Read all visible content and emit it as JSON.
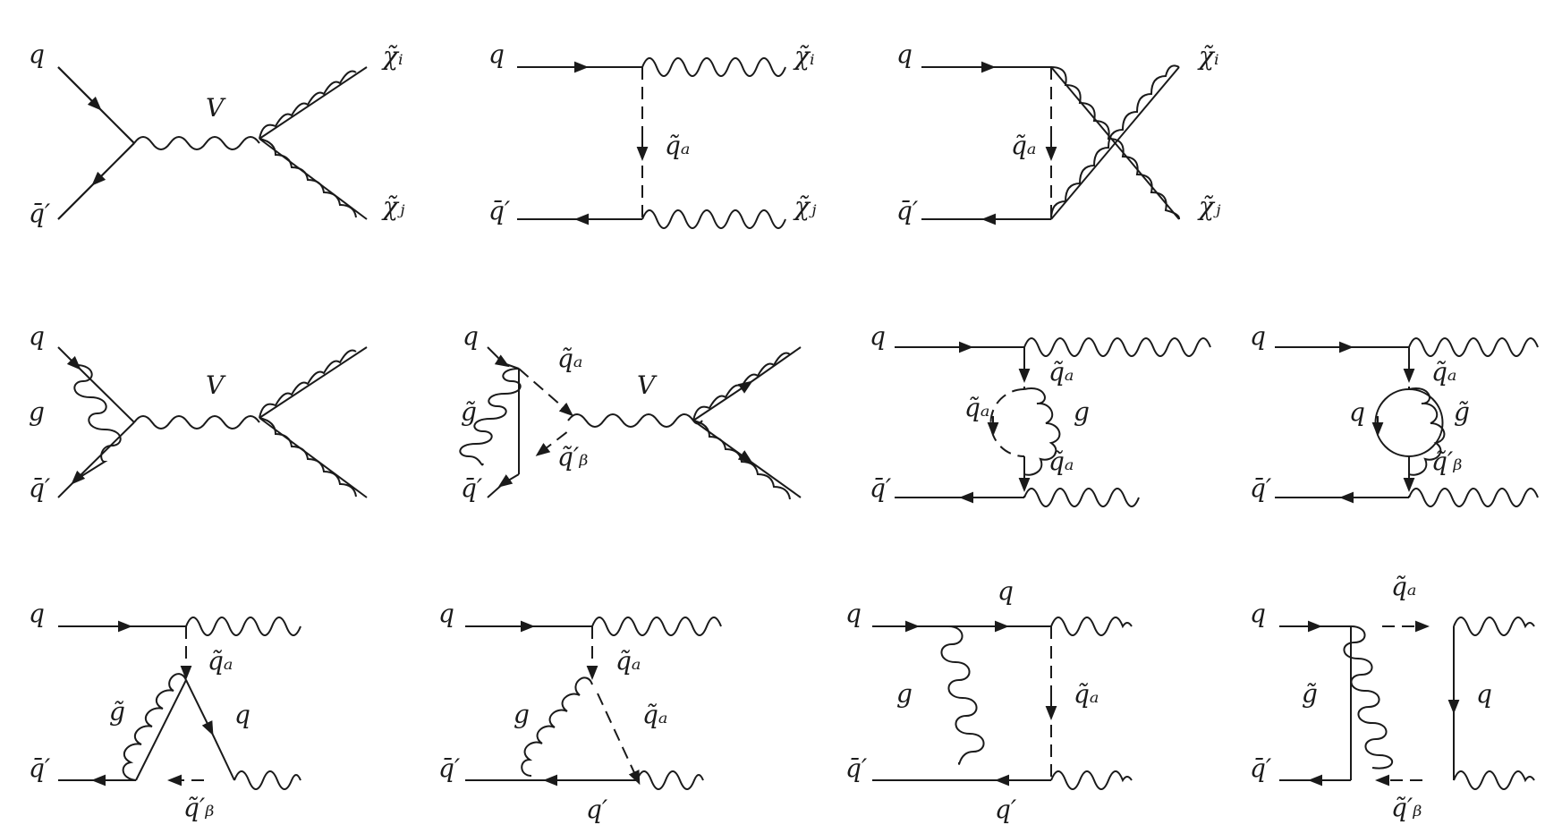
{
  "labels": {
    "q": "q",
    "qbar_prime": "q̄′",
    "q_prime": "q′",
    "g": "g",
    "V": "V",
    "chi_i": "χ̃ᵢ",
    "chi_j": "χ̃ⱼ",
    "gluino": "g̃",
    "squark_a": "q̃ₐ",
    "squark_b_prime": "q̃′ᵦ"
  },
  "diagram": {
    "rows": 3,
    "panels": [
      {
        "id": "p1",
        "row": 1,
        "topology": "s-channel vector exchange"
      },
      {
        "id": "p2",
        "row": 1,
        "topology": "t-channel squark exchange"
      },
      {
        "id": "p3",
        "row": 1,
        "topology": "u-channel squark exchange"
      },
      {
        "id": "p4",
        "row": 2,
        "topology": "vertex gluon correction"
      },
      {
        "id": "p5",
        "row": 2,
        "topology": "vertex gluino-squark correction"
      },
      {
        "id": "p6",
        "row": 2,
        "topology": "squark self-energy gluon loop"
      },
      {
        "id": "p7",
        "row": 2,
        "topology": "squark self-energy quark-gluino loop"
      },
      {
        "id": "p8",
        "row": 3,
        "topology": "gluino vertex triangle"
      },
      {
        "id": "p9",
        "row": 3,
        "topology": "gluon vertex triangle"
      },
      {
        "id": "p10",
        "row": 3,
        "topology": "gluon box"
      },
      {
        "id": "p11",
        "row": 3,
        "topology": "gluino box"
      }
    ]
  }
}
